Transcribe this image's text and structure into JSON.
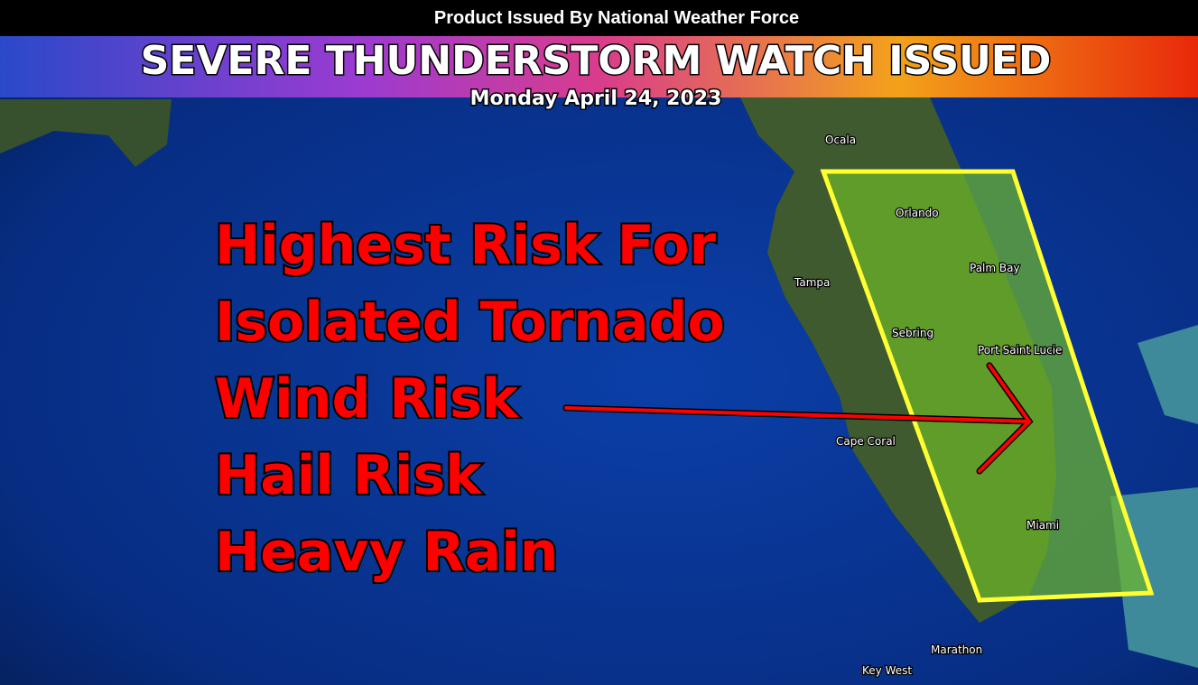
{
  "header": {
    "issuer": "Product Issued By National Weather Force",
    "title": "SEVERE THUNDERSTORM WATCH ISSUED",
    "date": "Monday April 24, 2023"
  },
  "risks": [
    "Highest Risk For",
    "Isolated Tornado",
    "Wind Risk",
    "Hail Risk",
    "Heavy Rain"
  ],
  "cities": [
    {
      "label": "Ocala"
    },
    {
      "label": "Orlando"
    },
    {
      "label": "Palm Bay"
    },
    {
      "label": "Tampa"
    },
    {
      "label": "Sebring"
    },
    {
      "label": "Port Saint Lucie"
    },
    {
      "label": "Cape Coral"
    },
    {
      "label": "Miami"
    },
    {
      "label": "Marathon"
    },
    {
      "label": "Key West"
    }
  ]
}
